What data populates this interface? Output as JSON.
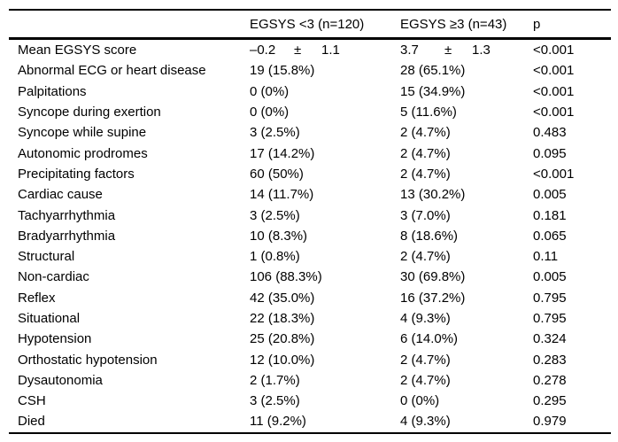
{
  "table": {
    "header": {
      "label": "",
      "col1": "EGSYS <3 (n=120)",
      "col2": "EGSYS ≥3 (n=43)",
      "p": "p"
    },
    "rows": [
      {
        "label": "Mean EGSYS score",
        "col1": {
          "value": "–0.2",
          "pm": "±",
          "sd": "1.1"
        },
        "col2": {
          "value": "3.7",
          "pm": "±",
          "sd": "1.3"
        },
        "p": "<0.001"
      },
      {
        "label": "Abnormal ECG or heart disease",
        "col1": "19 (15.8%)",
        "col2": "28 (65.1%)",
        "p": "<0.001"
      },
      {
        "label": "Palpitations",
        "col1": "0 (0%)",
        "col2": "15 (34.9%)",
        "p": "<0.001"
      },
      {
        "label": "Syncope during exertion",
        "col1": "0 (0%)",
        "col2": "5 (11.6%)",
        "p": "<0.001"
      },
      {
        "label": "Syncope while supine",
        "col1": "3 (2.5%)",
        "col2": "2 (4.7%)",
        "p": "0.483"
      },
      {
        "label": "Autonomic prodromes",
        "col1": "17 (14.2%)",
        "col2": "2 (4.7%)",
        "p": "0.095"
      },
      {
        "label": "Precipitating factors",
        "col1": "60 (50%)",
        "col2": "2 (4.7%)",
        "p": "<0.001"
      },
      {
        "label": "Cardiac cause",
        "col1": "14 (11.7%)",
        "col2": "13 (30.2%)",
        "p": "0.005"
      },
      {
        "label": "Tachyarrhythmia",
        "col1": "3 (2.5%)",
        "col2": "3 (7.0%)",
        "p": "0.181"
      },
      {
        "label": "Bradyarrhythmia",
        "col1": "10 (8.3%)",
        "col2": "8 (18.6%)",
        "p": "0.065"
      },
      {
        "label": "Structural",
        "col1": "1 (0.8%)",
        "col2": "2 (4.7%)",
        "p": "0.11"
      },
      {
        "label": "Non-cardiac",
        "col1": "106 (88.3%)",
        "col2": "30 (69.8%)",
        "p": "0.005"
      },
      {
        "label": "Reflex",
        "col1": "42 (35.0%)",
        "col2": "16 (37.2%)",
        "p": "0.795"
      },
      {
        "label": "Situational",
        "col1": "22 (18.3%)",
        "col2": "4 (9.3%)",
        "p": "0.795"
      },
      {
        "label": "Hypotension",
        "col1": "25 (20.8%)",
        "col2": "6 (14.0%)",
        "p": "0.324"
      },
      {
        "label": "Orthostatic hypotension",
        "col1": "12 (10.0%)",
        "col2": "2 (4.7%)",
        "p": "0.283"
      },
      {
        "label": "Dysautonomia",
        "col1": "2 (1.7%)",
        "col2": "2 (4.7%)",
        "p": "0.278"
      },
      {
        "label": "CSH",
        "col1": "3 (2.5%)",
        "col2": "0 (0%)",
        "p": "0.295"
      },
      {
        "label": "Died",
        "col1": "11 (9.2%)",
        "col2": "4 (9.3%)",
        "p": "0.979"
      }
    ]
  }
}
